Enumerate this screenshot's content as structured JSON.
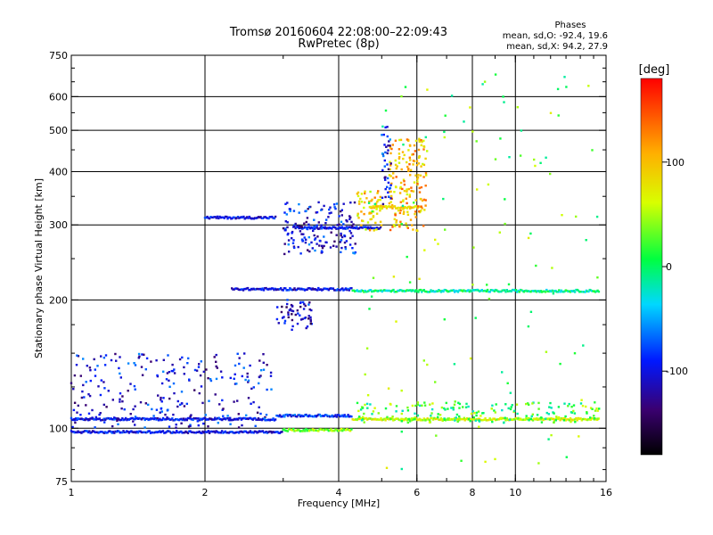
{
  "chart_data": {
    "type": "scatter",
    "title": "Tromsø 20160604 22:08:00–22:09:43",
    "subtitle": "RwPretec (8p)",
    "xlabel": "Frequency [MHz]",
    "ylabel": "Stationary phase Virtual Height [km]",
    "x_scale": "log",
    "y_scale": "log",
    "xlim": [
      1,
      16
    ],
    "ylim": [
      75,
      750
    ],
    "x_ticks": [
      1,
      2,
      4,
      6,
      8,
      10,
      16
    ],
    "x_tick_labels": [
      "1",
      "2",
      "4",
      "6",
      "8",
      "10",
      "16"
    ],
    "x_gridlines": [
      2,
      4,
      6,
      8,
      10
    ],
    "y_ticks": [
      75,
      100,
      200,
      300,
      400,
      500,
      600,
      750
    ],
    "y_tick_labels": [
      "75",
      "100",
      "200",
      "300",
      "400",
      "500",
      "600",
      "750"
    ],
    "y_gridlines": [
      100,
      200,
      300,
      400,
      500,
      600
    ],
    "grid": true,
    "info": {
      "heading": "Phases",
      "line1": "mean, sd,O: -92.4, 19.6",
      "line2": "mean, sd,X:  94.2, 27.9"
    },
    "colorbar": {
      "label": "[deg]",
      "range": [
        -180,
        180
      ],
      "ticks": [
        100,
        0,
        -100
      ],
      "tick_labels": [
        "100",
        "0",
        "-100"
      ]
    },
    "traces": [
      {
        "f_start": 1.0,
        "f_end": 3.0,
        "h": 98,
        "phase": -100
      },
      {
        "f_start": 3.0,
        "f_end": 4.3,
        "h": 99,
        "phase": 40
      },
      {
        "f_start": 1.0,
        "f_end": 2.9,
        "h": 105,
        "phase": -100
      },
      {
        "f_start": 2.9,
        "f_end": 4.3,
        "h": 107,
        "phase": -85
      },
      {
        "f_start": 4.3,
        "f_end": 15.5,
        "h": 105,
        "phase": 60
      },
      {
        "f_start": 2.3,
        "f_end": 4.3,
        "h": 212,
        "phase": -100
      },
      {
        "f_start": 4.3,
        "f_end": 15.5,
        "h": 210,
        "phase": -10
      },
      {
        "f_start": 2.0,
        "f_end": 2.9,
        "h": 312,
        "phase": -100
      },
      {
        "f_start": 3.2,
        "f_end": 5.0,
        "h": 295,
        "phase": -100
      },
      {
        "f_start": 4.7,
        "f_end": 6.2,
        "h": 330,
        "phase": 90
      }
    ],
    "clusters": [
      {
        "f_min": 1.0,
        "f_max": 2.85,
        "h_min": 100,
        "h_max": 150,
        "n": 260,
        "phase": -100
      },
      {
        "f_min": 3.0,
        "f_max": 4.4,
        "h_min": 255,
        "h_max": 340,
        "n": 160,
        "phase": -100
      },
      {
        "f_min": 2.9,
        "f_max": 3.5,
        "h_min": 170,
        "h_max": 200,
        "n": 55,
        "phase": -110
      },
      {
        "f_min": 4.4,
        "f_max": 5.0,
        "h_min": 290,
        "h_max": 360,
        "n": 60,
        "phase": 90
      },
      {
        "f_min": 5.2,
        "f_max": 6.3,
        "h_min": 290,
        "h_max": 480,
        "n": 170,
        "phase": 100
      },
      {
        "f_min": 5.0,
        "f_max": 5.25,
        "h_min": 330,
        "h_max": 510,
        "n": 40,
        "phase": -95
      },
      {
        "f_min": 4.4,
        "f_max": 15.5,
        "h_min": 103,
        "h_max": 115,
        "n": 190,
        "phase": 20
      },
      {
        "f_min": 4.4,
        "f_max": 15.5,
        "h_min": 80,
        "h_max": 680,
        "n": 120,
        "phase": 30
      }
    ]
  }
}
